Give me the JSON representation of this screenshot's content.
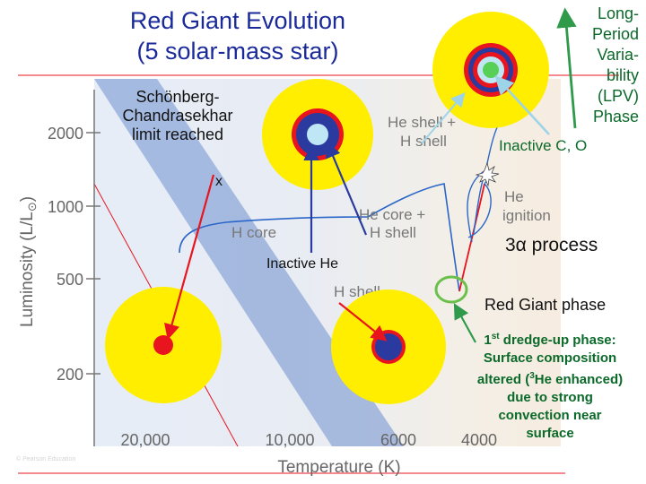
{
  "title": {
    "line1": "Red Giant Evolution",
    "line2": "(5 solar-mass star)"
  },
  "axes": {
    "ylabel": "Luminosity (L/L",
    "ylabel_sun": "⊙",
    "xlabel": "Temperature (K)",
    "y_ticks": [
      "2000",
      "1000",
      "500",
      "200"
    ],
    "x_ticks": [
      "20,000",
      "10,000",
      "6000",
      "4000"
    ]
  },
  "track_labels": {
    "h_core": "H core",
    "h_shell": "H shell",
    "he_core_line1": "He core +",
    "he_core_line2": "H shell",
    "he_shell_line1": "He shell +",
    "he_shell_line2": "H shell",
    "he_ignition_line1": "He",
    "he_ignition_line2": "ignition",
    "marker": "x"
  },
  "annotations": {
    "schonberg": [
      "Schönberg-",
      "Chandrasekhar",
      "limit reached"
    ],
    "inactive_he": "Inactive He",
    "lpv": [
      "Long-",
      "Period",
      "Varia-",
      "bility",
      "(LPV)",
      "Phase"
    ],
    "inactive_co": "Inactive C, O",
    "triple_alpha_symbol": "3α",
    "triple_alpha_text": " process",
    "red_giant_phase": "Red Giant phase",
    "dredge_up": {
      "first": "1",
      "sup": "st",
      "rest": " dredge-up phase:",
      "line2": "Surface composition",
      "line3a": "altered (",
      "line3sup": "3",
      "line3b": "He enhanced)",
      "line4": "due to strong",
      "line5": "convection near",
      "line6": "surface"
    }
  },
  "colors": {
    "title": "#1a2a9a",
    "star_yellow": "#ffee00",
    "shell_red": "#e8141e",
    "core_blue": "#2a3a9e",
    "track_blue": "#2a66c8",
    "main_sequence": "#8fa8d8",
    "lpv_green": "#2e9a4a"
  }
}
